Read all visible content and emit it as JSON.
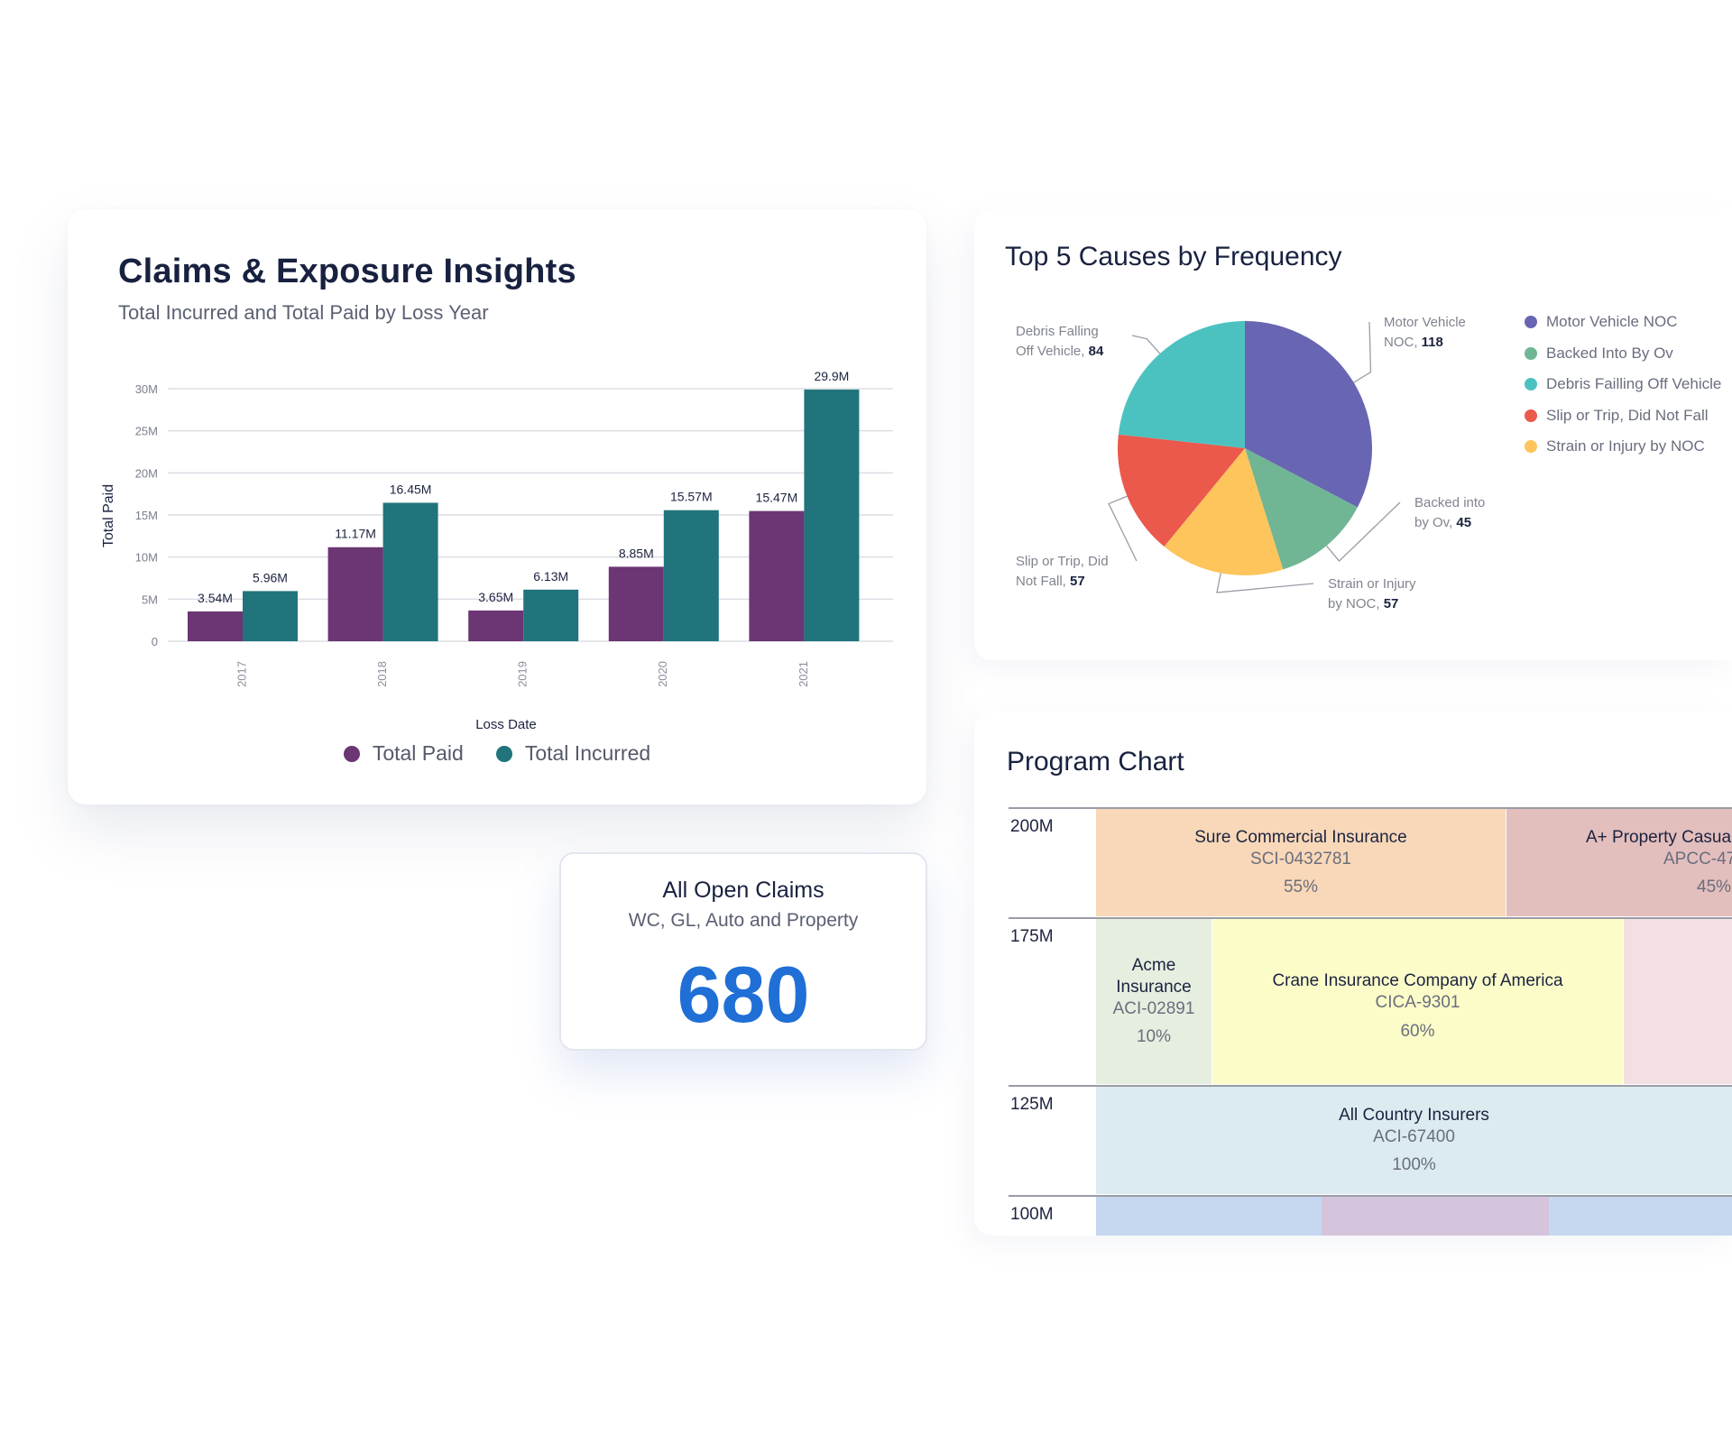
{
  "claims_card": {
    "title": "Claims & Exposure Insights",
    "subtitle": "Total Incurred and Total Paid by Loss Year"
  },
  "causes_card": {
    "title": "Top 5 Causes by Frequency"
  },
  "open_claims": {
    "title": "All Open Claims",
    "subtitle": "WC, GL, Auto and Property",
    "count": "680"
  },
  "program_chart": {
    "title": "Program Chart",
    "ticks": [
      "200M",
      "175M",
      "125M",
      "100M"
    ],
    "blocks": [
      {
        "name": "Sure Commercial Insurance",
        "code": "SCI-0432781",
        "pct": "55%",
        "color": "#f8d8b8"
      },
      {
        "name": "A+ Property Casua",
        "code": "APCC-47",
        "pct": "45%",
        "color": "#e2bebd"
      },
      {
        "name": "Acme Insurance",
        "code": "ACI-02891",
        "pct": "10%",
        "color": "#e6eedf"
      },
      {
        "name": "Crane Insurance Company of America",
        "code": "CICA-9301",
        "pct": "60%",
        "color": "#fbfcc8"
      },
      {
        "name": "",
        "code": "",
        "pct": "",
        "color": "#f3e0e2"
      },
      {
        "name": "All Country Insurers",
        "code": "ACI-67400",
        "pct": "100%",
        "color": "#dcebf0"
      },
      {
        "name": "",
        "code": "",
        "pct": "",
        "color": "#c6d8f0"
      },
      {
        "name": "",
        "code": "",
        "pct": "",
        "color": "#d4c5dd"
      },
      {
        "name": "",
        "code": "",
        "pct": "",
        "color": "#c6d8f0"
      }
    ]
  },
  "chart_data": [
    {
      "type": "bar",
      "title": "Claims & Exposure Insights",
      "subtitle": "Total Incurred and Total Paid by Loss Year",
      "xlabel": "Loss Date",
      "ylabel": "Total Paid",
      "categories": [
        "2017",
        "2018",
        "2019",
        "2020",
        "2021"
      ],
      "yticks": [
        "0",
        "5M",
        "10M",
        "15M",
        "20M",
        "25M",
        "30M"
      ],
      "ylim": [
        0,
        30
      ],
      "grid": true,
      "legend": "bottom",
      "series": [
        {
          "name": "Total Paid",
          "color": "#6b3673",
          "values": [
            3.54,
            11.17,
            3.65,
            8.85,
            15.47
          ],
          "labels": [
            "3.54M",
            "11.17M",
            "3.65M",
            "8.85M",
            "15.47M"
          ]
        },
        {
          "name": "Total Incurred",
          "color": "#21747c",
          "values": [
            5.96,
            16.45,
            6.13,
            15.57,
            29.9
          ],
          "labels": [
            "5.96M",
            "16.45M",
            "6.13M",
            "15.57M",
            "29.9M"
          ]
        }
      ]
    },
    {
      "type": "pie",
      "title": "Top 5 Causes by Frequency",
      "legend": "right",
      "slices": [
        {
          "name": "Motor Vehicle NOC",
          "value": 118,
          "color": "#6866b2",
          "label_lines": [
            "Motor Vehicle",
            "NOC, "
          ]
        },
        {
          "name": "Backed Into By Ov",
          "value": 45,
          "color": "#70b694",
          "label_lines": [
            "Backed into",
            "by Ov, "
          ]
        },
        {
          "name": "Strain or Injury by NOC",
          "value": 57,
          "color": "#fdc55b",
          "label_lines": [
            "Strain or Injury",
            "by NOC, "
          ]
        },
        {
          "name": "Slip or Trip, Did Not Fall",
          "value": 57,
          "color": "#eb584c",
          "label_lines": [
            "Slip or Trip, Did",
            "Not Fall, "
          ]
        },
        {
          "name": "Debris Failling Off Vehicle",
          "value": 84,
          "color": "#4cc2c0",
          "label_lines": [
            "Debris Falling",
            "Off Vehicle, "
          ]
        }
      ]
    }
  ]
}
